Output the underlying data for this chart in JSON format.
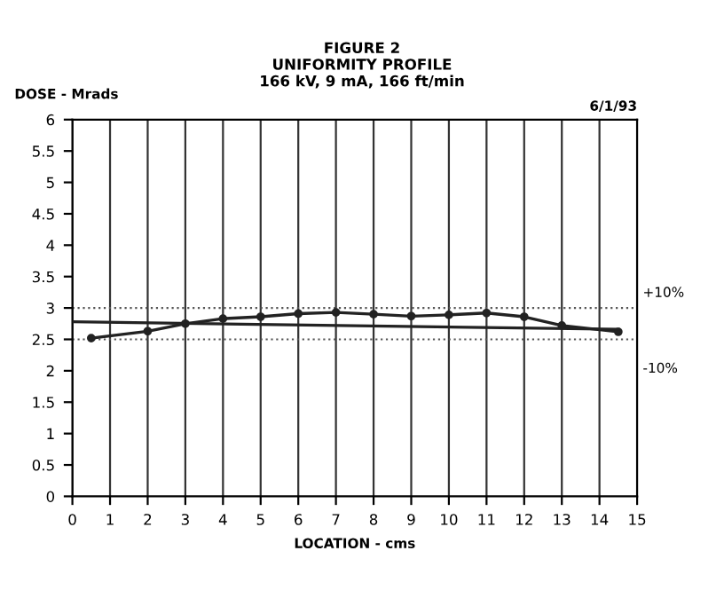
{
  "chart_data": {
    "type": "line",
    "title": "FIGURE 2\nUNIFORMITY PROFILE\n166 kV, 9 mA, 166 ft/min",
    "ylabel": "DOSE - Mrads",
    "xlabel": "LOCATION - cms",
    "annotations": [
      "6/1/93",
      "+10%",
      "-10%"
    ],
    "series": [
      {
        "color": "#222222",
        "marker": "circle",
        "x": [
          0.5,
          2,
          3,
          4,
          5,
          6,
          7,
          8,
          9,
          10,
          11,
          12,
          13,
          14.5
        ],
        "values": [
          2.52,
          2.63,
          2.75,
          2.83,
          2.86,
          2.91,
          2.93,
          2.9,
          2.87,
          2.89,
          2.92,
          2.86,
          2.72,
          2.62
        ]
      },
      {
        "color": "#222222",
        "marker": "none",
        "x": [
          0,
          14.5
        ],
        "values": [
          2.78,
          2.66
        ]
      }
    ],
    "ref_lines": [
      {
        "axis": "y",
        "value": 3.0,
        "line_style": "dotted",
        "color": "#555555"
      },
      {
        "axis": "y",
        "value": 2.5,
        "line_style": "dotted",
        "color": "#555555"
      }
    ],
    "xlim": [
      0,
      15
    ],
    "xticks": [
      0,
      1,
      2,
      3,
      4,
      5,
      6,
      7,
      8,
      9,
      10,
      11,
      12,
      13,
      14,
      15
    ],
    "ylim": [
      0,
      6
    ],
    "yticks": [
      0,
      0.5,
      1,
      1.5,
      2,
      2.5,
      3,
      3.5,
      4,
      4.5,
      5,
      5.5,
      6
    ],
    "grid": "x",
    "legend": false
  }
}
